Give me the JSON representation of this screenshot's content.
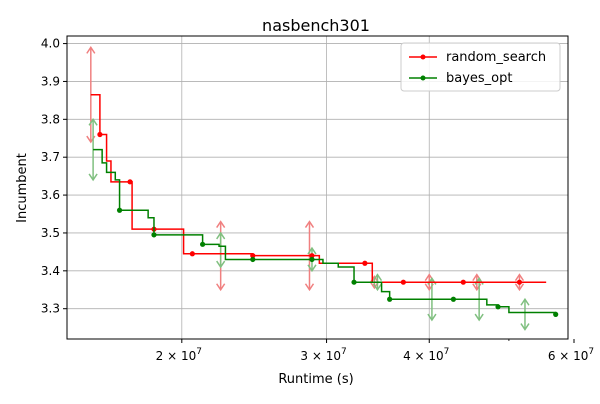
{
  "chart_data": {
    "type": "line",
    "title": "nasbench301",
    "xlabel": "Runtime (s)",
    "ylabel": "Incumbent",
    "xscale": "log",
    "xlim": [
      14500000,
      59000000
    ],
    "ylim": [
      3.22,
      4.02
    ],
    "grid": true,
    "legend_position": "top-right",
    "x_ticks": [
      {
        "value": 20000000,
        "base": "2",
        "exp": "7"
      },
      {
        "value": 30000000,
        "base": "3",
        "exp": "7"
      },
      {
        "value": 40000000,
        "base": "4",
        "exp": "7"
      },
      {
        "value": 60000000,
        "base": "6",
        "exp": "7"
      }
    ],
    "x_tick_multiplier": "× 10",
    "y_ticks": [
      {
        "value": 3.3,
        "label": "3.3"
      },
      {
        "value": 3.4,
        "label": "3.4"
      },
      {
        "value": 3.5,
        "label": "3.5"
      },
      {
        "value": 3.6,
        "label": "3.6"
      },
      {
        "value": 3.7,
        "label": "3.7"
      },
      {
        "value": 3.8,
        "label": "3.8"
      },
      {
        "value": 3.9,
        "label": "3.9"
      },
      {
        "value": 4.0,
        "label": "4.0"
      }
    ],
    "series": [
      {
        "name": "random_search",
        "color": "#ff0000",
        "error_color": "#f08080",
        "steps": [
          [
            15500000,
            3.865
          ],
          [
            15900000,
            3.76
          ],
          [
            16200000,
            3.69
          ],
          [
            16400000,
            3.635
          ],
          [
            17400000,
            3.51
          ],
          [
            18500000,
            3.51
          ],
          [
            19800000,
            3.51
          ],
          [
            20100000,
            3.445
          ],
          [
            22000000,
            3.445
          ],
          [
            24400000,
            3.44
          ],
          [
            27500000,
            3.44
          ],
          [
            29400000,
            3.42
          ],
          [
            31500000,
            3.42
          ],
          [
            33400000,
            3.42
          ],
          [
            34100000,
            3.37
          ],
          [
            36700000,
            3.37
          ],
          [
            40000000,
            3.37
          ],
          [
            44000000,
            3.37
          ],
          [
            50000000,
            3.37
          ],
          [
            55500000,
            3.37
          ]
        ],
        "markers": [
          [
            15900000,
            3.76
          ],
          [
            17300000,
            3.635
          ],
          [
            18500000,
            3.51
          ],
          [
            20600000,
            3.445
          ],
          [
            24400000,
            3.44
          ],
          [
            28800000,
            3.44
          ],
          [
            33400000,
            3.42
          ],
          [
            37200000,
            3.37
          ],
          [
            44000000,
            3.37
          ],
          [
            51500000,
            3.37
          ]
        ],
        "error_bars": [
          [
            15500000,
            3.74,
            3.99
          ],
          [
            22300000,
            3.35,
            3.53
          ],
          [
            28600000,
            3.35,
            3.53
          ],
          [
            34300000,
            3.355,
            3.385
          ],
          [
            40000000,
            3.35,
            3.39
          ],
          [
            45700000,
            3.35,
            3.39
          ],
          [
            51500000,
            3.35,
            3.39
          ]
        ]
      },
      {
        "name": "bayes_opt",
        "color": "#008000",
        "error_color": "#80c080",
        "steps": [
          [
            15600000,
            3.72
          ],
          [
            16000000,
            3.685
          ],
          [
            16200000,
            3.66
          ],
          [
            16600000,
            3.64
          ],
          [
            16800000,
            3.56
          ],
          [
            17800000,
            3.56
          ],
          [
            18200000,
            3.54
          ],
          [
            18500000,
            3.495
          ],
          [
            20000000,
            3.495
          ],
          [
            21200000,
            3.47
          ],
          [
            22200000,
            3.465
          ],
          [
            22600000,
            3.43
          ],
          [
            24400000,
            3.43
          ],
          [
            27000000,
            3.43
          ],
          [
            28800000,
            3.43
          ],
          [
            29700000,
            3.42
          ],
          [
            31000000,
            3.41
          ],
          [
            32400000,
            3.37
          ],
          [
            34000000,
            3.37
          ],
          [
            35000000,
            3.345
          ],
          [
            35800000,
            3.325
          ],
          [
            40000000,
            3.325
          ],
          [
            42800000,
            3.325
          ],
          [
            47000000,
            3.31
          ],
          [
            48500000,
            3.305
          ],
          [
            50000000,
            3.29
          ],
          [
            52000000,
            3.29
          ],
          [
            57000000,
            3.285
          ]
        ],
        "markers": [
          [
            16800000,
            3.56
          ],
          [
            18500000,
            3.495
          ],
          [
            21200000,
            3.47
          ],
          [
            24400000,
            3.43
          ],
          [
            28800000,
            3.43
          ],
          [
            32400000,
            3.37
          ],
          [
            35800000,
            3.325
          ],
          [
            42800000,
            3.325
          ],
          [
            48500000,
            3.305
          ],
          [
            57000000,
            3.285
          ]
        ],
        "error_bars": [
          [
            15600000,
            3.64,
            3.8
          ],
          [
            22300000,
            3.41,
            3.5
          ],
          [
            28800000,
            3.4,
            3.46
          ],
          [
            34600000,
            3.35,
            3.39
          ],
          [
            40300000,
            3.27,
            3.38
          ],
          [
            46000000,
            3.27,
            3.38
          ],
          [
            52300000,
            3.245,
            3.325
          ]
        ]
      }
    ]
  }
}
